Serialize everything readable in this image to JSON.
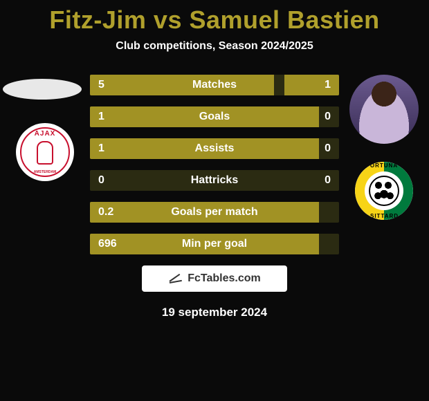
{
  "title": {
    "player1": "Fitz-Jim",
    "vs": "vs",
    "player2": "Samuel Bastien",
    "color": "#b0a02c"
  },
  "subtitle": "Club competitions, Season 2024/2025",
  "player1_club": "Ajax",
  "player2_club": "Fortuna Sittard",
  "stats": {
    "colors": {
      "fill": "#a19224",
      "track": "#2b2b12",
      "text": "#ffffff"
    },
    "rows": [
      {
        "label": "Matches",
        "left": "5",
        "right": "1",
        "left_pct": 74,
        "right_pct": 22
      },
      {
        "label": "Goals",
        "left": "1",
        "right": "0",
        "left_pct": 92,
        "right_pct": 0
      },
      {
        "label": "Assists",
        "left": "1",
        "right": "0",
        "left_pct": 92,
        "right_pct": 0
      },
      {
        "label": "Hattricks",
        "left": "0",
        "right": "0",
        "left_pct": 0,
        "right_pct": 0
      },
      {
        "label": "Goals per match",
        "left": "0.2",
        "right": "",
        "left_pct": 92,
        "right_pct": 0
      },
      {
        "label": "Min per goal",
        "left": "696",
        "right": "",
        "left_pct": 92,
        "right_pct": 0
      }
    ]
  },
  "footer_brand": "FcTables.com",
  "date": "19 september 2024"
}
